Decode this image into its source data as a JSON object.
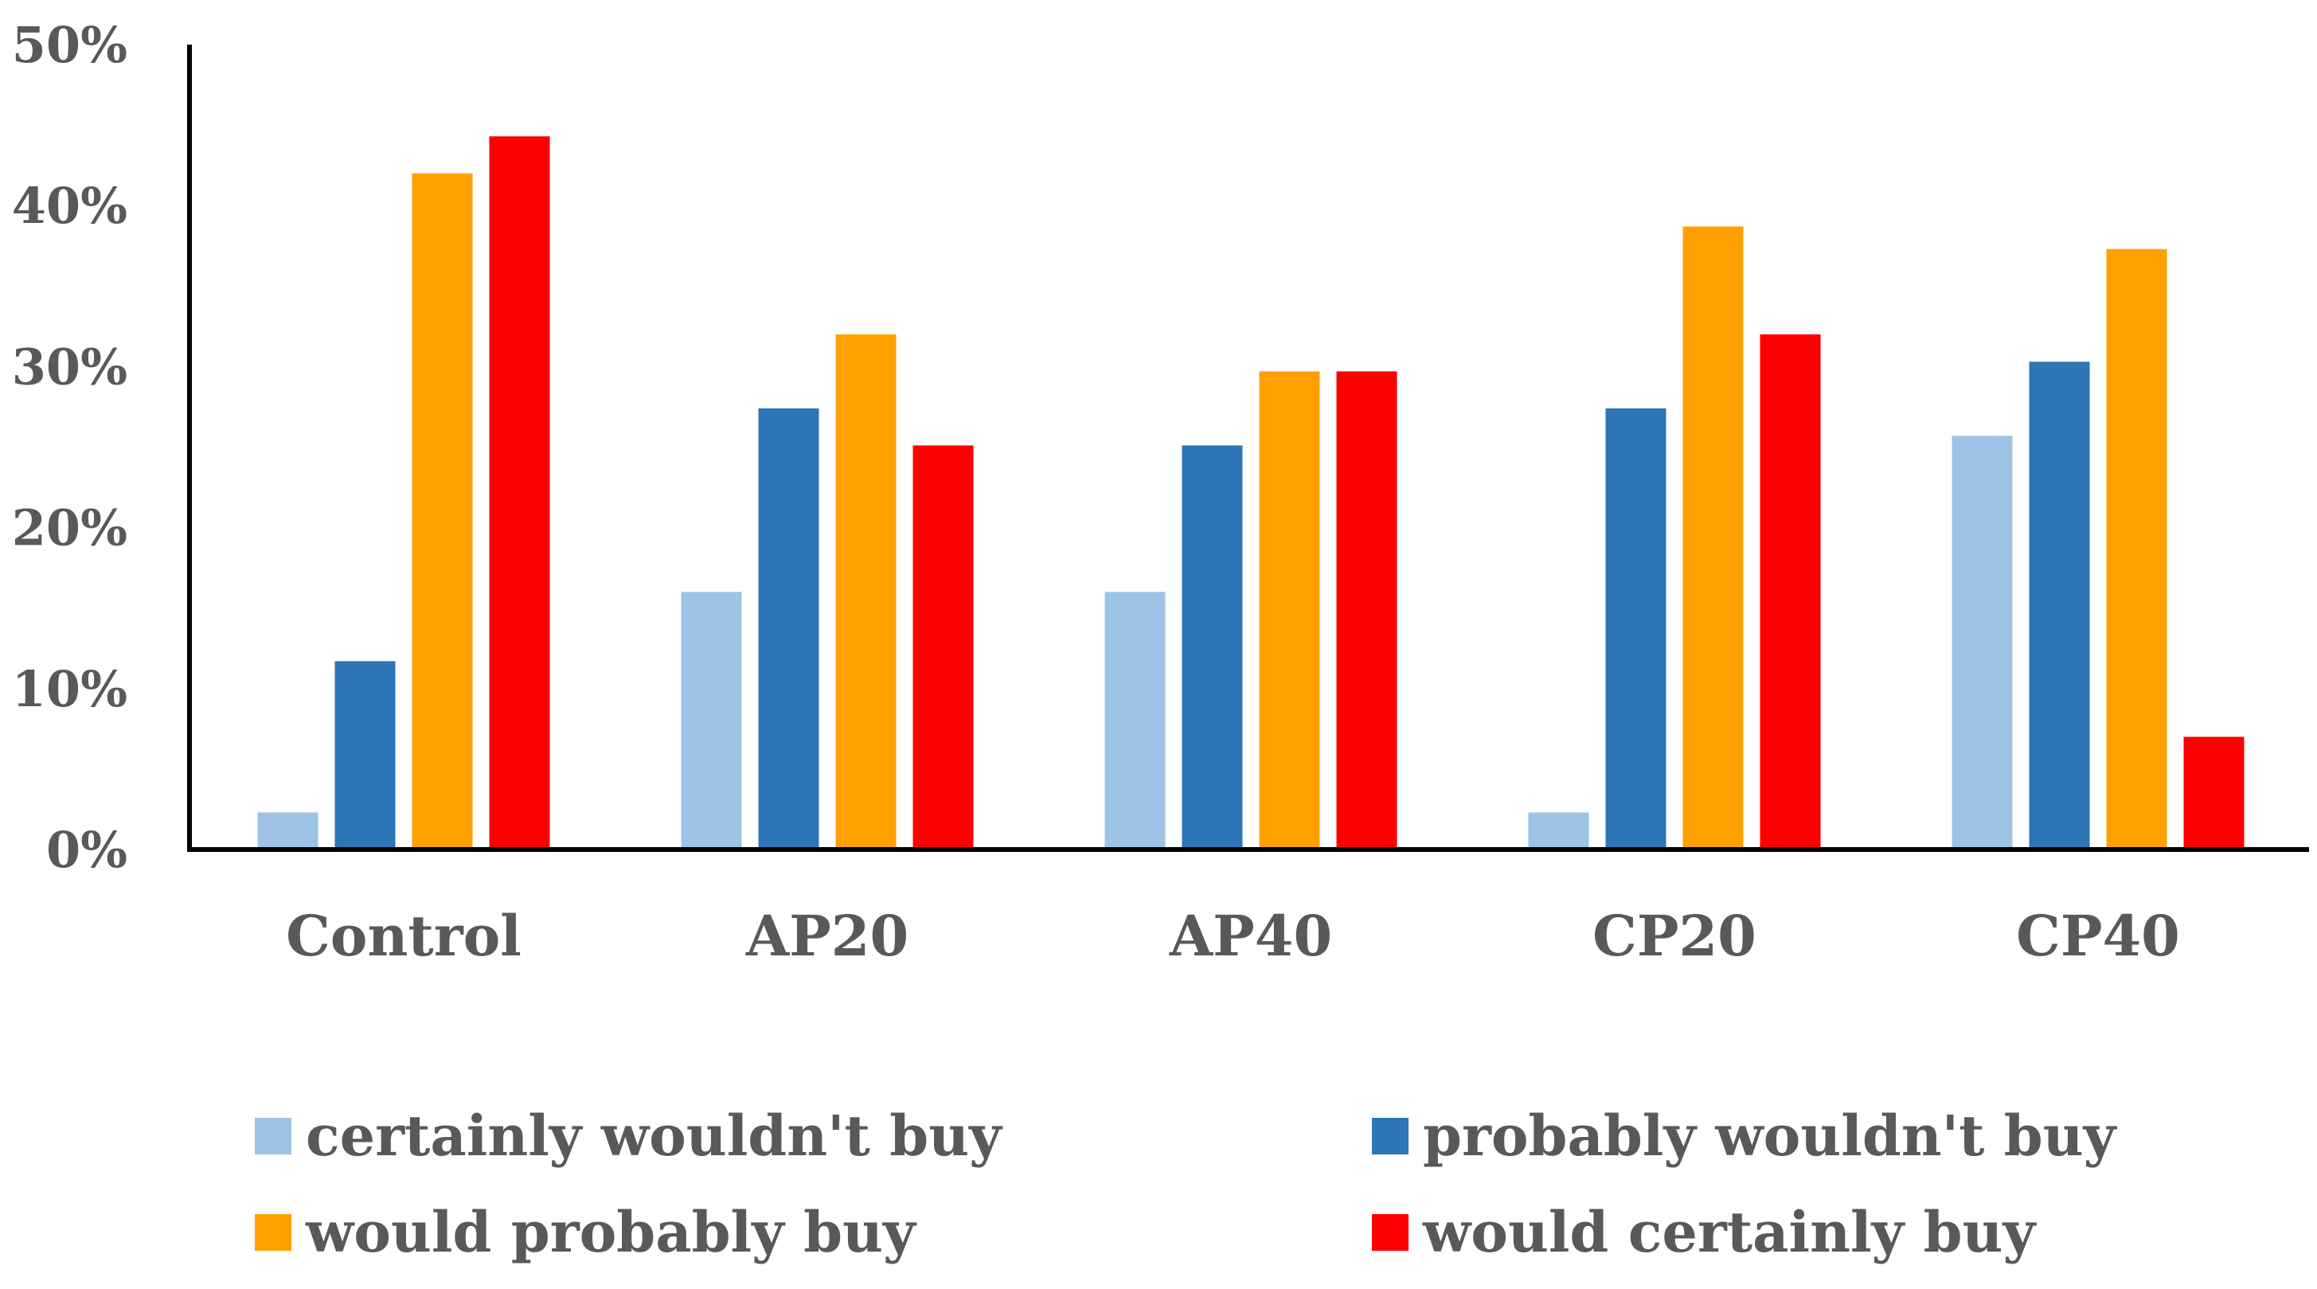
{
  "chart_data": {
    "type": "bar",
    "title": "",
    "xlabel": "",
    "ylabel": "",
    "categories": [
      "Control",
      "AP20",
      "AP40",
      "CP20",
      "CP40"
    ],
    "series": [
      {
        "name": "certainly wouldn't buy",
        "color": "#9DC3E6",
        "values": [
          2.3,
          16.0,
          16.0,
          2.3,
          25.7
        ]
      },
      {
        "name": "probably wouldn't buy",
        "color": "#2E75B6",
        "values": [
          11.7,
          27.4,
          25.1,
          27.4,
          30.3
        ]
      },
      {
        "name": "would probably buy",
        "color": "#FFA000",
        "values": [
          42.0,
          32.0,
          29.7,
          38.7,
          37.3
        ]
      },
      {
        "name": "would certainly buy",
        "color": "#FF0000",
        "values": [
          44.3,
          25.1,
          29.7,
          32.0,
          7.0
        ]
      }
    ],
    "yticks": [
      "0%",
      "10%",
      "20%",
      "30%",
      "40%",
      "50%"
    ],
    "ylim": [
      0,
      50
    ],
    "grid": false,
    "legend_position": "bottom"
  }
}
